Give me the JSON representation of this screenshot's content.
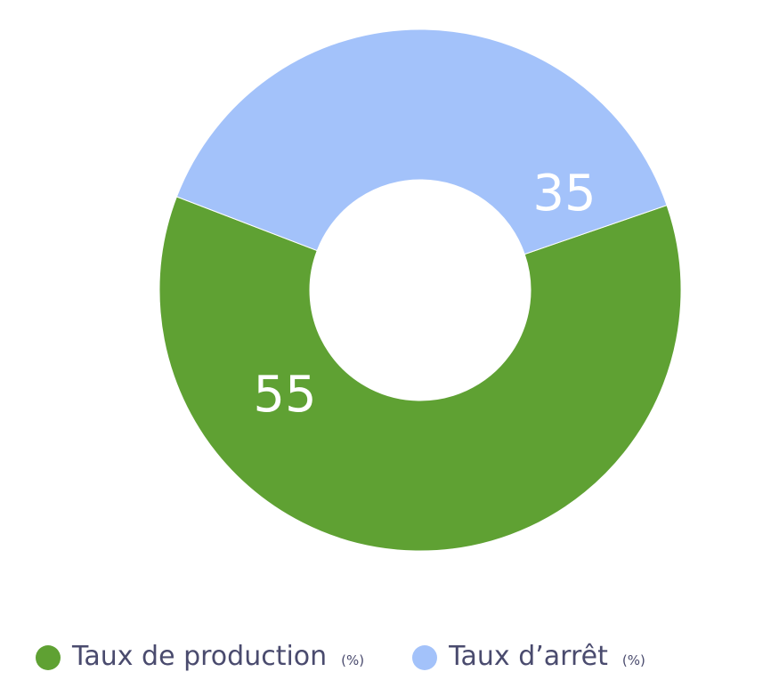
{
  "chart_data": {
    "type": "pie",
    "donut": true,
    "categories": [
      "Taux de production",
      "Taux d’arrêt"
    ],
    "values": [
      55,
      35
    ],
    "colors": [
      "#5fa133",
      "#a3c2fa"
    ],
    "label_color": "#ffffff",
    "legend": {
      "placement": "bottom",
      "items": [
        {
          "label": "Taux de production",
          "unit": "(%)",
          "color": "#5fa133"
        },
        {
          "label": "Taux d’arrêt",
          "unit": "(%)",
          "color": "#a3c2fa"
        }
      ]
    }
  }
}
